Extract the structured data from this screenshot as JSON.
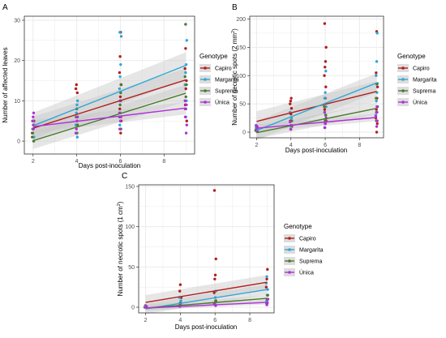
{
  "colors": {
    "Capiro": "#b21e1e",
    "Margarita": "#2fa7d8",
    "Suprema": "#4a7a2a",
    "Única": "#b030d8",
    "ribbon": "#c7c7c7",
    "grid": "#ebebeb",
    "axis": "#333333"
  },
  "legend_title": "Genotype",
  "chart_data": [
    {
      "type": "scatter",
      "panel_label": "A",
      "xlabel": "Days post-inoculation",
      "ylabel": "Number of affected leaves",
      "xlim": [
        1.6,
        9.4
      ],
      "ylim": [
        -3.2,
        31
      ],
      "xticks": [
        2,
        4,
        6,
        8
      ],
      "yticks": [
        0,
        10,
        20,
        30
      ],
      "grid": true,
      "legend_placement": "right",
      "series": [
        {
          "name": "Capiro",
          "color_key": "Capiro",
          "fit": {
            "x": [
              2,
              9
            ],
            "y": [
              3.2,
              15.2
            ],
            "se": 2.2
          },
          "points": [
            [
              2,
              2
            ],
            [
              2,
              3
            ],
            [
              2,
              4
            ],
            [
              2,
              5
            ],
            [
              4,
              4
            ],
            [
              4,
              8
            ],
            [
              4,
              12
            ],
            [
              4,
              13
            ],
            [
              4,
              14
            ],
            [
              6,
              2
            ],
            [
              6,
              5
            ],
            [
              6,
              8
            ],
            [
              6,
              11
            ],
            [
              6,
              14
            ],
            [
              6,
              17
            ],
            [
              6,
              21
            ],
            [
              6,
              27
            ],
            [
              9,
              5
            ],
            [
              9,
              9
            ],
            [
              9,
              13
            ],
            [
              9,
              15
            ],
            [
              9,
              18
            ],
            [
              9,
              23
            ]
          ]
        },
        {
          "name": "Margarita",
          "color_key": "Margarita",
          "fit": {
            "x": [
              2,
              9
            ],
            "y": [
              3.8,
              18.8
            ],
            "se": 2.5
          },
          "points": [
            [
              2,
              1
            ],
            [
              2,
              3
            ],
            [
              2,
              5
            ],
            [
              4,
              1
            ],
            [
              4,
              4
            ],
            [
              4,
              7
            ],
            [
              4,
              9
            ],
            [
              4,
              10
            ],
            [
              6,
              4
            ],
            [
              6,
              7
            ],
            [
              6,
              10
            ],
            [
              6,
              13
            ],
            [
              6,
              16
            ],
            [
              6,
              19
            ],
            [
              6,
              26
            ],
            [
              6,
              27
            ],
            [
              9,
              6
            ],
            [
              9,
              10
            ],
            [
              9,
              14
            ],
            [
              9,
              17
            ],
            [
              9,
              19
            ],
            [
              9,
              25
            ]
          ]
        },
        {
          "name": "Suprema",
          "color_key": "Suprema",
          "fit": {
            "x": [
              2,
              9
            ],
            "y": [
              0.1,
              11.9
            ],
            "se": 1.6
          },
          "points": [
            [
              2,
              0
            ],
            [
              2,
              1
            ],
            [
              2,
              2
            ],
            [
              4,
              2
            ],
            [
              4,
              4
            ],
            [
              4,
              6
            ],
            [
              4,
              8
            ],
            [
              6,
              3
            ],
            [
              6,
              6
            ],
            [
              6,
              9
            ],
            [
              6,
              12
            ],
            [
              6,
              14
            ],
            [
              9,
              8
            ],
            [
              9,
              11
            ],
            [
              9,
              14
            ],
            [
              9,
              16
            ],
            [
              9,
              29
            ]
          ]
        },
        {
          "name": "Única",
          "color_key": "Única",
          "fit": {
            "x": [
              2,
              9
            ],
            "y": [
              3.6,
              8.2
            ],
            "se": 1.2
          },
          "points": [
            [
              2,
              3
            ],
            [
              2,
              4
            ],
            [
              2,
              5
            ],
            [
              2,
              6
            ],
            [
              2,
              7
            ],
            [
              4,
              2
            ],
            [
              4,
              3
            ],
            [
              4,
              5
            ],
            [
              4,
              6
            ],
            [
              6,
              3
            ],
            [
              6,
              5
            ],
            [
              6,
              6
            ],
            [
              6,
              7
            ],
            [
              6,
              10
            ],
            [
              9,
              2
            ],
            [
              9,
              4
            ],
            [
              9,
              6
            ],
            [
              9,
              8
            ],
            [
              9,
              9
            ],
            [
              9,
              10
            ]
          ]
        }
      ]
    },
    {
      "type": "scatter",
      "panel_label": "B",
      "xlabel": "Days post-inoculation",
      "ylabel_main": "Number of necrotic spots (2 mm",
      "ylabel_sup": "2",
      "ylabel_end": ")",
      "xlim": [
        1.6,
        9.4
      ],
      "ylim": [
        -10,
        205
      ],
      "xticks": [
        2,
        4,
        6,
        8
      ],
      "yticks": [
        0,
        50,
        100,
        150,
        200
      ],
      "grid": true,
      "legend_placement": "right",
      "series": [
        {
          "name": "Capiro",
          "color_key": "Capiro",
          "fit": {
            "x": [
              2,
              9
            ],
            "y": [
              19,
              72
            ],
            "se": 14
          },
          "points": [
            [
              2,
              3
            ],
            [
              2,
              6
            ],
            [
              2,
              10
            ],
            [
              4,
              10
            ],
            [
              4,
              20
            ],
            [
              4,
              32
            ],
            [
              4,
              42
            ],
            [
              4,
              50
            ],
            [
              4,
              55
            ],
            [
              4,
              60
            ],
            [
              6,
              20
            ],
            [
              6,
              40
            ],
            [
              6,
              60
            ],
            [
              6,
              80
            ],
            [
              6,
              100
            ],
            [
              6,
              115
            ],
            [
              6,
              125
            ],
            [
              6,
              150
            ],
            [
              6,
              192
            ],
            [
              9,
              0
            ],
            [
              9,
              15
            ],
            [
              9,
              25
            ],
            [
              9,
              40
            ],
            [
              9,
              60
            ],
            [
              9,
              80
            ],
            [
              9,
              105
            ],
            [
              9,
              178
            ]
          ]
        },
        {
          "name": "Margarita",
          "color_key": "Margarita",
          "fit": {
            "x": [
              2,
              9
            ],
            "y": [
              3,
              87
            ],
            "se": 13
          },
          "points": [
            [
              2,
              3
            ],
            [
              2,
              8
            ],
            [
              4,
              10
            ],
            [
              4,
              25
            ],
            [
              4,
              35
            ],
            [
              6,
              15
            ],
            [
              6,
              30
            ],
            [
              6,
              45
            ],
            [
              6,
              60
            ],
            [
              6,
              70
            ],
            [
              6,
              108
            ],
            [
              9,
              30
            ],
            [
              9,
              55
            ],
            [
              9,
              70
            ],
            [
              9,
              86
            ],
            [
              9,
              100
            ],
            [
              9,
              125
            ],
            [
              9,
              175
            ]
          ]
        },
        {
          "name": "Suprema",
          "color_key": "Suprema",
          "fit": {
            "x": [
              2,
              9
            ],
            "y": [
              -1,
              42
            ],
            "se": 8
          },
          "points": [
            [
              2,
              1
            ],
            [
              2,
              3
            ],
            [
              4,
              5
            ],
            [
              4,
              12
            ],
            [
              4,
              20
            ],
            [
              6,
              8
            ],
            [
              6,
              20
            ],
            [
              6,
              30
            ],
            [
              6,
              45
            ],
            [
              9,
              20
            ],
            [
              9,
              35
            ],
            [
              9,
              45
            ],
            [
              9,
              60
            ],
            [
              9,
              85
            ]
          ]
        },
        {
          "name": "Única",
          "color_key": "Única",
          "fit": {
            "x": [
              2,
              9
            ],
            "y": [
              7,
              26
            ],
            "se": 5
          },
          "points": [
            [
              2,
              3
            ],
            [
              2,
              8
            ],
            [
              2,
              12
            ],
            [
              4,
              5
            ],
            [
              4,
              12
            ],
            [
              4,
              18
            ],
            [
              6,
              8
            ],
            [
              6,
              15
            ],
            [
              6,
              25
            ],
            [
              6,
              35
            ],
            [
              9,
              10
            ],
            [
              9,
              20
            ],
            [
              9,
              28
            ],
            [
              9,
              35
            ],
            [
              9,
              45
            ]
          ]
        }
      ]
    },
    {
      "type": "scatter",
      "panel_label": "C",
      "xlabel": "Days post-inoculation",
      "ylabel_main": "Number of necrotic spots (1 cm",
      "ylabel_sup": "2",
      "ylabel_end": ")",
      "xlim": [
        1.6,
        9.4
      ],
      "ylim": [
        -7,
        152
      ],
      "xticks": [
        2,
        4,
        6,
        8
      ],
      "yticks": [
        0,
        50,
        100,
        150
      ],
      "grid": true,
      "legend_placement": "right",
      "series": [
        {
          "name": "Capiro",
          "color_key": "Capiro",
          "fit": {
            "x": [
              2,
              9
            ],
            "y": [
              6,
              31
            ],
            "se": 7
          },
          "points": [
            [
              2,
              0
            ],
            [
              2,
              2
            ],
            [
              4,
              5
            ],
            [
              4,
              12
            ],
            [
              4,
              20
            ],
            [
              4,
              28
            ],
            [
              6,
              8
            ],
            [
              6,
              18
            ],
            [
              6,
              35
            ],
            [
              6,
              40
            ],
            [
              6,
              60
            ],
            [
              6,
              145
            ],
            [
              9,
              5
            ],
            [
              9,
              15
            ],
            [
              9,
              25
            ],
            [
              9,
              35
            ],
            [
              9,
              47
            ]
          ]
        },
        {
          "name": "Margarita",
          "color_key": "Margarita",
          "fit": {
            "x": [
              2,
              9
            ],
            "y": [
              -2,
              22
            ],
            "se": 5
          },
          "points": [
            [
              2,
              0
            ],
            [
              2,
              1
            ],
            [
              4,
              2
            ],
            [
              4,
              8
            ],
            [
              4,
              12
            ],
            [
              6,
              5
            ],
            [
              6,
              12
            ],
            [
              6,
              20
            ],
            [
              9,
              8
            ],
            [
              9,
              15
            ],
            [
              9,
              22
            ],
            [
              9,
              30
            ],
            [
              9,
              38
            ]
          ]
        },
        {
          "name": "Suprema",
          "color_key": "Suprema",
          "fit": {
            "x": [
              2,
              9
            ],
            "y": [
              -1,
              11
            ],
            "se": 3
          },
          "points": [
            [
              2,
              0
            ],
            [
              4,
              2
            ],
            [
              4,
              5
            ],
            [
              6,
              3
            ],
            [
              6,
              8
            ],
            [
              9,
              5
            ],
            [
              9,
              10
            ],
            [
              9,
              15
            ]
          ]
        },
        {
          "name": "Única",
          "color_key": "Única",
          "fit": {
            "x": [
              2,
              9
            ],
            "y": [
              -1,
              6
            ],
            "se": 2
          },
          "points": [
            [
              2,
              0
            ],
            [
              2,
              1
            ],
            [
              4,
              1
            ],
            [
              4,
              3
            ],
            [
              6,
              2
            ],
            [
              6,
              5
            ],
            [
              9,
              3
            ],
            [
              9,
              6
            ],
            [
              9,
              10
            ]
          ]
        }
      ]
    }
  ]
}
